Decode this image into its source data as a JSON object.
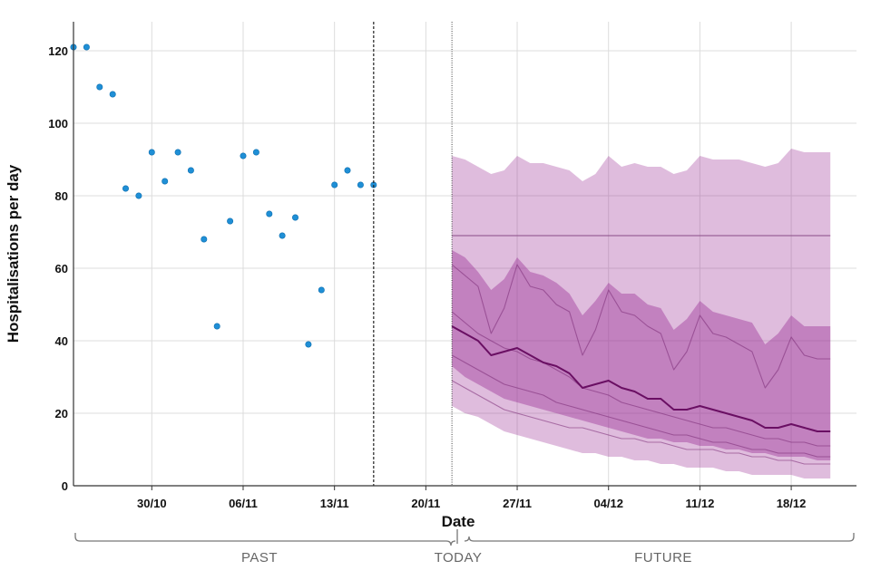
{
  "chart_data": {
    "type": "scatter",
    "xlabel": "Date",
    "ylabel": "Hospitalisations per day",
    "ylim": [
      0,
      128
    ],
    "xlim": [
      "2023-10-24",
      "2023-12-23"
    ],
    "y_ticks": [
      0,
      20,
      40,
      60,
      80,
      100,
      120
    ],
    "x_ticks": [
      {
        "date": "2023-10-30",
        "label": "30/10"
      },
      {
        "date": "2023-11-06",
        "label": "06/11"
      },
      {
        "date": "2023-11-13",
        "label": "13/11"
      },
      {
        "date": "2023-11-20",
        "label": "20/11"
      },
      {
        "date": "2023-11-27",
        "label": "27/11"
      },
      {
        "date": "2023-12-04",
        "label": "04/12"
      },
      {
        "date": "2023-12-11",
        "label": "11/12"
      },
      {
        "date": "2023-12-18",
        "label": "18/12"
      }
    ],
    "grid": true,
    "markers": {
      "data_cutoff_date": "2023-11-16",
      "today_date": "2023-11-22"
    },
    "period_labels": {
      "past": "PAST",
      "today": "TODAY",
      "future": "FUTURE"
    },
    "colors": {
      "observed": "#1f8fd6",
      "projection": "#9b2f96",
      "median": "#6a0f63"
    },
    "observed": {
      "x": [
        "2023-10-24",
        "2023-10-25",
        "2023-10-26",
        "2023-10-27",
        "2023-10-28",
        "2023-10-29",
        "2023-10-30",
        "2023-10-31",
        "2023-11-01",
        "2023-11-02",
        "2023-11-03",
        "2023-11-04",
        "2023-11-05",
        "2023-11-06",
        "2023-11-07",
        "2023-11-08",
        "2023-11-09",
        "2023-11-10",
        "2023-11-11",
        "2023-11-12",
        "2023-11-13",
        "2023-11-14",
        "2023-11-15",
        "2023-11-16"
      ],
      "y": [
        121,
        121,
        110,
        108,
        82,
        80,
        92,
        84,
        92,
        87,
        68,
        44,
        73,
        91,
        92,
        75,
        69,
        74,
        39,
        54,
        83,
        87,
        83,
        83
      ]
    },
    "projection": {
      "x": [
        "2023-11-22",
        "2023-11-23",
        "2023-11-24",
        "2023-11-25",
        "2023-11-26",
        "2023-11-27",
        "2023-11-28",
        "2023-11-29",
        "2023-11-30",
        "2023-12-01",
        "2023-12-02",
        "2023-12-03",
        "2023-12-04",
        "2023-12-05",
        "2023-12-06",
        "2023-12-07",
        "2023-12-08",
        "2023-12-09",
        "2023-12-10",
        "2023-12-11",
        "2023-12-12",
        "2023-12-13",
        "2023-12-14",
        "2023-12-15",
        "2023-12-16",
        "2023-12-17",
        "2023-12-18",
        "2023-12-19",
        "2023-12-20",
        "2023-12-21"
      ],
      "outer_upper": [
        91,
        90,
        88,
        86,
        87,
        91,
        89,
        89,
        88,
        87,
        84,
        86,
        91,
        88,
        89,
        88,
        88,
        86,
        87,
        91,
        90,
        90,
        90,
        89,
        88,
        89,
        93,
        92,
        92,
        92
      ],
      "outer_lower": [
        22,
        20,
        19,
        17,
        15,
        14,
        13,
        12,
        11,
        10,
        9,
        9,
        8,
        8,
        7,
        7,
        6,
        6,
        5,
        5,
        5,
        4,
        4,
        3,
        3,
        3,
        3,
        2,
        2,
        2
      ],
      "inner_upper": [
        65,
        63,
        59,
        54,
        57,
        63,
        59,
        58,
        56,
        53,
        47,
        51,
        56,
        53,
        53,
        50,
        49,
        43,
        46,
        51,
        48,
        47,
        46,
        45,
        39,
        42,
        47,
        44,
        44,
        44
      ],
      "inner_lower": [
        33,
        30,
        28,
        26,
        24,
        23,
        22,
        21,
        20,
        19,
        18,
        17,
        16,
        15,
        14,
        13,
        13,
        12,
        12,
        11,
        11,
        10,
        10,
        9,
        9,
        8,
        8,
        8,
        7,
        7
      ],
      "median": [
        44,
        42,
        40,
        36,
        37,
        38,
        36,
        34,
        33,
        31,
        27,
        28,
        29,
        27,
        26,
        24,
        24,
        21,
        21,
        22,
        21,
        20,
        19,
        18,
        16,
        16,
        17,
        16,
        15,
        15
      ],
      "flat_reference": 69,
      "sample_paths": [
        [
          61,
          58,
          55,
          42,
          49,
          61,
          55,
          54,
          50,
          48,
          36,
          43,
          54,
          48,
          47,
          44,
          42,
          32,
          37,
          47,
          42,
          41,
          39,
          37,
          27,
          32,
          41,
          36,
          35,
          35
        ],
        [
          48,
          45,
          42,
          40,
          38,
          37,
          35,
          34,
          32,
          30,
          27,
          26,
          25,
          23,
          22,
          21,
          20,
          19,
          18,
          17,
          16,
          16,
          15,
          14,
          13,
          13,
          12,
          12,
          11,
          11
        ],
        [
          36,
          34,
          32,
          30,
          28,
          27,
          26,
          25,
          23,
          22,
          21,
          20,
          19,
          18,
          17,
          16,
          15,
          14,
          14,
          13,
          12,
          12,
          11,
          10,
          10,
          9,
          9,
          9,
          8,
          8
        ],
        [
          29,
          27,
          25,
          23,
          21,
          20,
          19,
          18,
          17,
          16,
          16,
          15,
          14,
          13,
          13,
          12,
          12,
          11,
          10,
          10,
          10,
          9,
          9,
          8,
          8,
          7,
          7,
          6,
          6,
          6
        ]
      ]
    }
  }
}
